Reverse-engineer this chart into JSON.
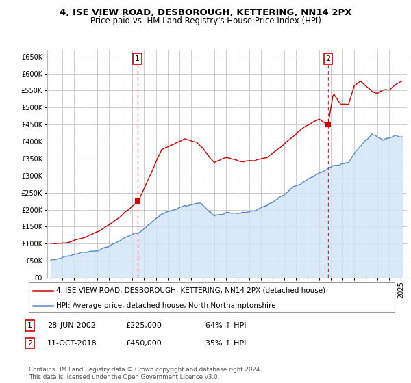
{
  "title": "4, ISE VIEW ROAD, DESBOROUGH, KETTERING, NN14 2PX",
  "subtitle": "Price paid vs. HM Land Registry's House Price Index (HPI)",
  "ylim": [
    0,
    670000
  ],
  "yticks": [
    0,
    50000,
    100000,
    150000,
    200000,
    250000,
    300000,
    350000,
    400000,
    450000,
    500000,
    550000,
    600000,
    650000
  ],
  "hpi_color": "#5588cc",
  "hpi_fill_color": "#d0e4f7",
  "price_color": "#cc0000",
  "dashed_color": "#cc0000",
  "background_color": "#ffffff",
  "grid_color": "#cccccc",
  "sale1_year": 2002,
  "sale1_month": 6,
  "sale1_price": 225000,
  "sale2_year": 2018,
  "sale2_month": 10,
  "sale2_price": 450000,
  "legend_line1": "4, ISE VIEW ROAD, DESBOROUGH, KETTERING, NN14 2PX (detached house)",
  "legend_line2": "HPI: Average price, detached house, North Northamptonshire",
  "ann1_num": "1",
  "ann1_date": "28-JUN-2002",
  "ann1_price": "£225,000",
  "ann1_hpi": "64% ↑ HPI",
  "ann2_num": "2",
  "ann2_date": "11-OCT-2018",
  "ann2_price": "£450,000",
  "ann2_hpi": "35% ↑ HPI",
  "footer": "Contains HM Land Registry data © Crown copyright and database right 2024.\nThis data is licensed under the Open Government Licence v3.0.",
  "title_fontsize": 9.5,
  "subtitle_fontsize": 8.5,
  "tick_fontsize": 7,
  "legend_fontsize": 7.5,
  "ann_fontsize": 8
}
